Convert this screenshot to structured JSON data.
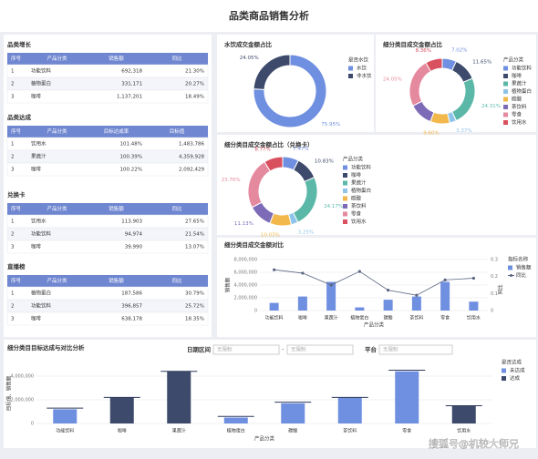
{
  "header": {
    "title": "品类商品销售分析"
  },
  "tables": [
    {
      "title": "品类增长",
      "columns": [
        "序号",
        "产品分类",
        "销售额",
        "同比"
      ],
      "rows": [
        [
          "1",
          "功能饮料",
          "692,318",
          "21.30%"
        ],
        [
          "2",
          "植物蛋白",
          "331,171",
          "20.27%"
        ],
        [
          "3",
          "咖啡",
          "1,137,201",
          "18.49%"
        ]
      ]
    },
    {
      "title": "品类达成",
      "columns": [
        "序号",
        "产品分类",
        "目标达成率",
        "目标值"
      ],
      "rows": [
        [
          "1",
          "饮用水",
          "101.48%",
          "1,483,786"
        ],
        [
          "2",
          "果蔬汁",
          "100.39%",
          "4,359,928"
        ],
        [
          "3",
          "咖啡",
          "100.22%",
          "2,092,429"
        ]
      ]
    },
    {
      "title": "兑换卡",
      "columns": [
        "序号",
        "产品分类",
        "销售额",
        "同比"
      ],
      "rows": [
        [
          "1",
          "饮用水",
          "113,903",
          "27.65%"
        ],
        [
          "2",
          "功能饮料",
          "94,974",
          "21.54%"
        ],
        [
          "3",
          "咖啡",
          "39,990",
          "13.07%"
        ]
      ]
    },
    {
      "title": "直播榜",
      "columns": [
        "序号",
        "产品分类",
        "销售额",
        "同比"
      ],
      "rows": [
        [
          "1",
          "植物蛋白",
          "187,586",
          "30.79%"
        ],
        [
          "2",
          "功能饮料",
          "396,857",
          "25.72%"
        ],
        [
          "3",
          "咖啡",
          "638,178",
          "18.35%"
        ]
      ]
    }
  ],
  "filters": {
    "date_label": "日期区间",
    "start": "无限制",
    "separator": "-",
    "end": "无限制",
    "platform_label": "平台",
    "platform": "无限制"
  },
  "watermark": "搜狐号@机较大师兄",
  "chart_data": [
    {
      "type": "donut",
      "title": "水饮成交金额占比",
      "legend_title": "是否水饮",
      "categories": [
        "水饮",
        "非水饮"
      ],
      "values": [
        75.95,
        24.05
      ],
      "value_labels": [
        "75.95%",
        "24.05%"
      ],
      "colors": [
        "#6f8fe0",
        "#3d4a6b"
      ]
    },
    {
      "type": "donut",
      "title": "细分类目成交金额占比",
      "legend_title": "产品分类",
      "categories": [
        "功能饮料",
        "咖啡",
        "果蔬汁",
        "植物蛋白",
        "碳酸",
        "茶饮料",
        "零食",
        "饮用水"
      ],
      "values": [
        7.02,
        11.65,
        24.31,
        3.37,
        9.6,
        11.64,
        24.05,
        8.36
      ],
      "value_labels": [
        "7.02%",
        "11.65%",
        "24.31%",
        "3.37%",
        "9.60%",
        null,
        "24.05%",
        "8.36%"
      ],
      "colors": [
        "#6f8fe0",
        "#3d4a6b",
        "#5bb8a8",
        "#8fc4ea",
        "#f2b84b",
        "#7d6bb8",
        "#e58a9e",
        "#d9505f"
      ]
    },
    {
      "type": "donut",
      "title": "细分类目成交金额占比（兑换卡）",
      "legend_title": "产品分类",
      "categories": [
        "功能饮料",
        "咖啡",
        "果蔬汁",
        "植物蛋白",
        "碳酸",
        "茶饮料",
        "零食",
        "饮用水"
      ],
      "values": [
        7.47,
        10.83,
        24.17,
        3.25,
        10.03,
        11.13,
        23.76,
        8.77
      ],
      "value_labels": [
        "7.47%",
        "10.83%",
        "24.17%",
        "3.25%",
        "10.03%",
        "11.13%",
        "23.76%",
        "8.77%"
      ],
      "colors": [
        "#6f8fe0",
        "#3d4a6b",
        "#5bb8a8",
        "#8fc4ea",
        "#f2b84b",
        "#7d6bb8",
        "#e58a9e",
        "#d9505f"
      ]
    },
    {
      "type": "combo",
      "title": "细分类目成交金额对比",
      "legend_title": "指标名称",
      "x_label": "产品分类",
      "y_label": "销售额",
      "y2_label": "同比",
      "categories": [
        "功能饮料",
        "咖啡",
        "果蔬汁",
        "植物蛋白",
        "碳酸",
        "茶饮料",
        "零食",
        "饮用水"
      ],
      "series": [
        {
          "name": "销售额",
          "color": "#6f8fe0",
          "values": [
            1200000,
            2200000,
            4500000,
            500000,
            1700000,
            2200000,
            4500000,
            1400000
          ]
        },
        {
          "name": "同比",
          "color": "#5a6580",
          "axis": "y2",
          "values": [
            0.24,
            0.22,
            0.15,
            0.23,
            0.12,
            0.09,
            0.18,
            0.19
          ]
        }
      ],
      "ylim": [
        0,
        8000000
      ],
      "yticks": [
        0,
        {
          "value": 2000000,
          "label": "2,000,000"
        },
        {
          "value": 4000000,
          "label": "4,000,000"
        },
        {
          "value": 6000000,
          "label": "6,000,000"
        },
        {
          "value": 8000000,
          "label": "8,000,000"
        }
      ],
      "y2lim": [
        0,
        0.3
      ],
      "y2ticks": [
        0,
        0.1,
        0.2,
        0.3
      ],
      "grid": true
    },
    {
      "type": "target-bar",
      "title": "细分类目目标达成与对比分析",
      "legend_title": "是否达成",
      "x_label": "产品分类",
      "y_label": "目标值、销售额",
      "categories": [
        "功能饮料",
        "咖啡",
        "果蔬汁",
        "植物蛋白",
        "碳酸",
        "茶饮料",
        "零食",
        "饮用水"
      ],
      "values": [
        1200000,
        2200000,
        4400000,
        500000,
        1700000,
        2200000,
        4400000,
        1500000
      ],
      "targets": [
        1300000,
        2200000,
        4400000,
        600000,
        1800000,
        2200000,
        4500000,
        1500000
      ],
      "status": [
        0,
        1,
        1,
        0,
        0,
        0,
        0,
        1
      ],
      "legend": [
        {
          "name": "未达成",
          "color": "#6f8fe0"
        },
        {
          "name": "达成",
          "color": "#3d4a6b"
        }
      ],
      "target_color": "#2d3a5a",
      "ylim": [
        0,
        5000000
      ],
      "yticks": [
        0,
        {
          "value": 2000000,
          "label": "2,000,000"
        },
        {
          "value": 4000000,
          "label": "4,000,000"
        }
      ],
      "grid": true
    }
  ]
}
